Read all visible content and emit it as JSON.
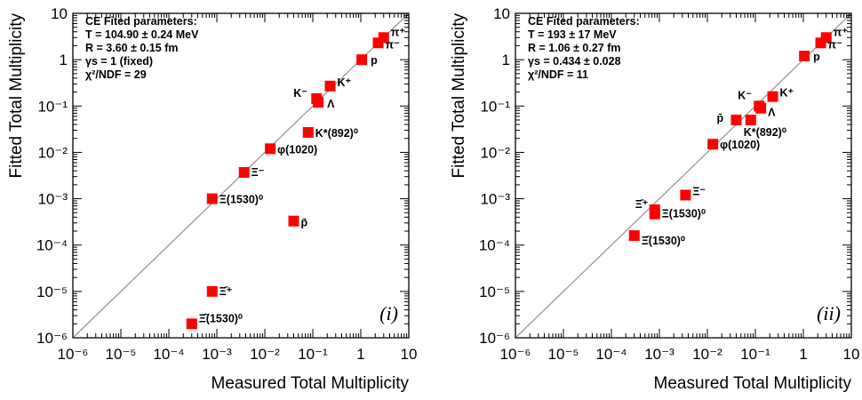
{
  "colors": {
    "marker": "#ff0000",
    "diagonal": "#999999",
    "frame": "#000000"
  },
  "chart_data": [
    {
      "type": "scatter",
      "panel_tag": "(i)",
      "xlabel": "Measured Total Multiplicity",
      "ylabel": "Fitted Total Multiplicity",
      "xscale": "log",
      "yscale": "log",
      "xlim": [
        1e-06,
        10
      ],
      "ylim": [
        1e-06,
        10
      ],
      "x_tick_labels": [
        "10⁻⁶",
        "10⁻⁵",
        "10⁻⁴",
        "10⁻³",
        "10⁻²",
        "10⁻¹",
        "1",
        "10"
      ],
      "y_tick_labels": [
        "10⁻⁶",
        "10⁻⁵",
        "10⁻⁴",
        "10⁻³",
        "10⁻²",
        "10⁻¹",
        "1",
        "10"
      ],
      "diagonal": "y = x",
      "info_lines": [
        "CE Fited parameters:",
        "T = 104.90 ± 0.24 MeV",
        "R = 3.60 ± 0.15 fm",
        "γs = 1 (fixed)",
        "χ²/NDF = 29"
      ],
      "points": [
        {
          "label": "π⁺",
          "x": 3.0,
          "y": 3.0
        },
        {
          "label": "π⁻",
          "x": 2.3,
          "y": 2.3
        },
        {
          "label": "p",
          "x": 1.05,
          "y": 1.0
        },
        {
          "label": "K⁺",
          "x": 0.23,
          "y": 0.27
        },
        {
          "label": "K⁻",
          "x": 0.12,
          "y": 0.145
        },
        {
          "label": "Λ",
          "x": 0.13,
          "y": 0.12
        },
        {
          "label": "K*(892)⁰",
          "x": 0.08,
          "y": 0.027
        },
        {
          "label": "φ(1020)",
          "x": 0.013,
          "y": 0.012
        },
        {
          "label": "Ξ⁻",
          "x": 0.0037,
          "y": 0.0037
        },
        {
          "label": "Ξ(1530)⁰",
          "x": 0.0008,
          "y": 0.001
        },
        {
          "label": "p̄",
          "x": 0.04,
          "y": 0.00033
        },
        {
          "label": "Ξ̄⁺",
          "x": 0.0008,
          "y": 1e-05
        },
        {
          "label": "Ξ̄(1530)⁰",
          "x": 0.0003,
          "y": 2e-06
        }
      ]
    },
    {
      "type": "scatter",
      "panel_tag": "(ii)",
      "xlabel": "Measured Total Multiplicity",
      "ylabel": "Fitted Total Multiplicity",
      "xscale": "log",
      "yscale": "log",
      "xlim": [
        1e-06,
        10
      ],
      "ylim": [
        1e-06,
        10
      ],
      "x_tick_labels": [
        "10⁻⁶",
        "10⁻⁵",
        "10⁻⁴",
        "10⁻³",
        "10⁻²",
        "10⁻¹",
        "1",
        "10"
      ],
      "y_tick_labels": [
        "10⁻⁶",
        "10⁻⁵",
        "10⁻⁴",
        "10⁻³",
        "10⁻²",
        "10⁻¹",
        "1",
        "10"
      ],
      "diagonal": "y = x",
      "info_lines": [
        "CE Fited parameters:",
        "T = 193 ± 17 MeV",
        "R = 1.06 ± 0.27 fm",
        "γs = 0.434 ± 0.028",
        "χ²/NDF = 11"
      ],
      "points": [
        {
          "label": "π⁺",
          "x": 3.0,
          "y": 3.0
        },
        {
          "label": "π⁻",
          "x": 2.3,
          "y": 2.3
        },
        {
          "label": "p",
          "x": 1.05,
          "y": 1.2
        },
        {
          "label": "K⁺",
          "x": 0.23,
          "y": 0.16
        },
        {
          "label": "K⁻",
          "x": 0.12,
          "y": 0.1
        },
        {
          "label": "Λ",
          "x": 0.13,
          "y": 0.09
        },
        {
          "label": "K*(892)⁰",
          "x": 0.08,
          "y": 0.05
        },
        {
          "label": "p̄",
          "x": 0.04,
          "y": 0.05
        },
        {
          "label": "φ(1020)",
          "x": 0.013,
          "y": 0.015
        },
        {
          "label": "Ξ⁻",
          "x": 0.0035,
          "y": 0.0012
        },
        {
          "label": "Ξ̄⁺",
          "x": 0.0008,
          "y": 0.00058
        },
        {
          "label": "Ξ(1530)⁰",
          "x": 0.0008,
          "y": 0.00047
        },
        {
          "label": "Ξ̄(1530)⁰",
          "x": 0.0003,
          "y": 0.00016
        }
      ]
    }
  ]
}
